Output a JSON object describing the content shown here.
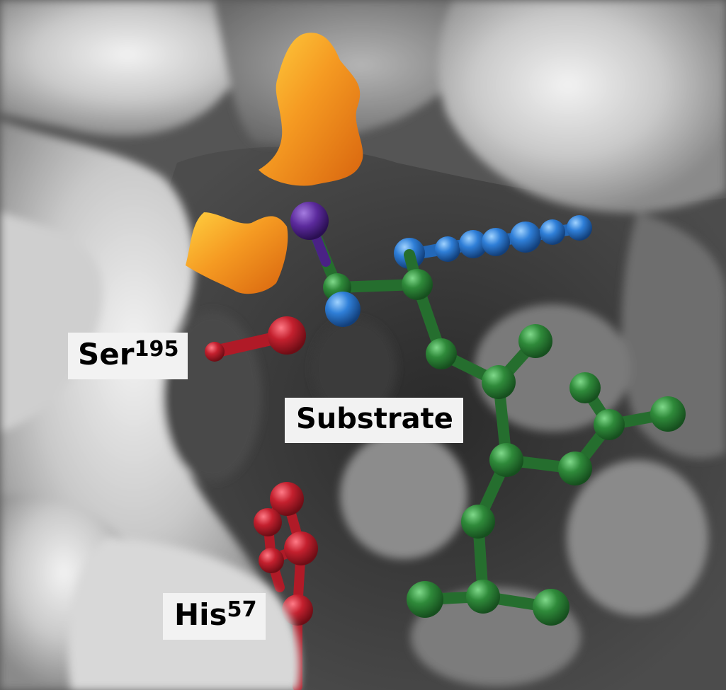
{
  "image": {
    "description_tags": [
      "molecular-surface",
      "ball-and-stick",
      "enzyme-active-site"
    ],
    "colors": {
      "surface_dark": "#3c3c3c",
      "surface_light": "#e6e6e6",
      "oxyanion_orange": "#f08a1c",
      "substrate_green": "#2f8a3a",
      "catalytic_red": "#c4202e",
      "substrate_blue": "#2f7fd8",
      "oxygen_purple": "#5b2a9c",
      "label_bg": "#f2f2f2"
    }
  },
  "labels": {
    "ser": {
      "name": "Ser",
      "number": "195"
    },
    "substrate": {
      "name": "Substrate"
    },
    "his": {
      "name": "His",
      "number": "57"
    }
  }
}
